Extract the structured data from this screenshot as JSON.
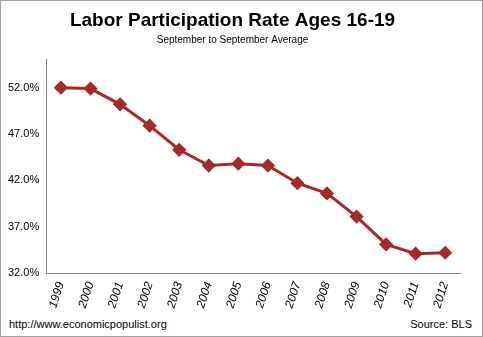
{
  "chart_data": {
    "type": "line",
    "title": "Labor Participation Rate Ages 16-19",
    "subtitle": "September to September Average",
    "annotations": [
      "http://www.economicpopulist.org",
      "Source: BLS"
    ],
    "categories": [
      "1999",
      "2000",
      "2001",
      "2002",
      "2003",
      "2004",
      "2005",
      "2006",
      "2007",
      "2008",
      "2009",
      "2010",
      "2011",
      "2012"
    ],
    "values": [
      52.0,
      51.9,
      50.2,
      47.9,
      45.3,
      43.6,
      43.8,
      43.6,
      41.7,
      40.6,
      38.1,
      35.1,
      34.1,
      34.2
    ],
    "color": "#a52a2a",
    "marker": "diamond",
    "line_style": "solid",
    "ylim": [
      32,
      55
    ],
    "yticks": [
      {
        "value": 32,
        "label": "32.0%"
      },
      {
        "value": 37,
        "label": "37.0%"
      },
      {
        "value": 42,
        "label": "42.0%"
      },
      {
        "value": 47,
        "label": "47.0%"
      },
      {
        "value": 52,
        "label": "52.0%"
      }
    ],
    "grid": false
  }
}
